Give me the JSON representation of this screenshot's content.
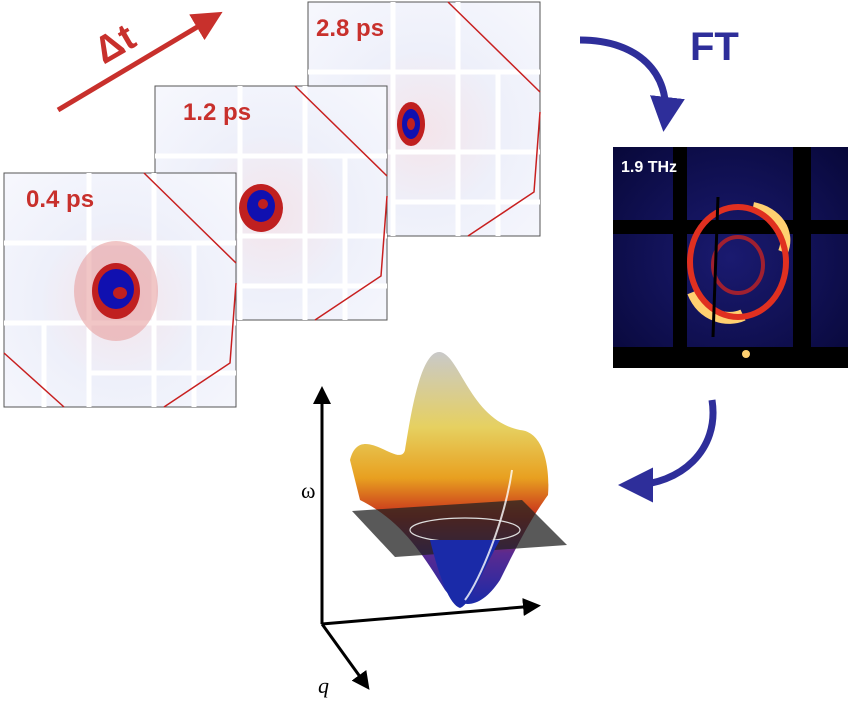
{
  "delta_label": "Δt",
  "panels": [
    {
      "label": "0.4 ps"
    },
    {
      "label": "1.2 ps"
    },
    {
      "label": "2.8 ps"
    }
  ],
  "transform_label": "FT",
  "frequency_panel": {
    "label": "1.9 THz"
  },
  "axes": {
    "y_label": "ω",
    "x_label": "q"
  }
}
